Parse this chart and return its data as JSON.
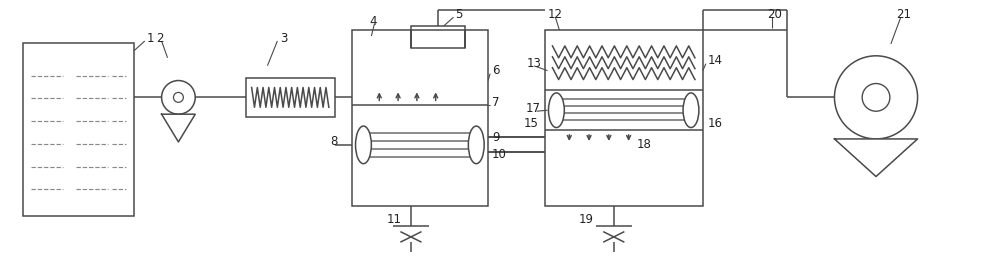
{
  "bg_color": "#ffffff",
  "line_color": "#4a4a4a",
  "lw": 1.1,
  "fig_width": 10.0,
  "fig_height": 2.65,
  "dpi": 100,
  "label_fontsize": 8.5,
  "label_color": "#222222"
}
